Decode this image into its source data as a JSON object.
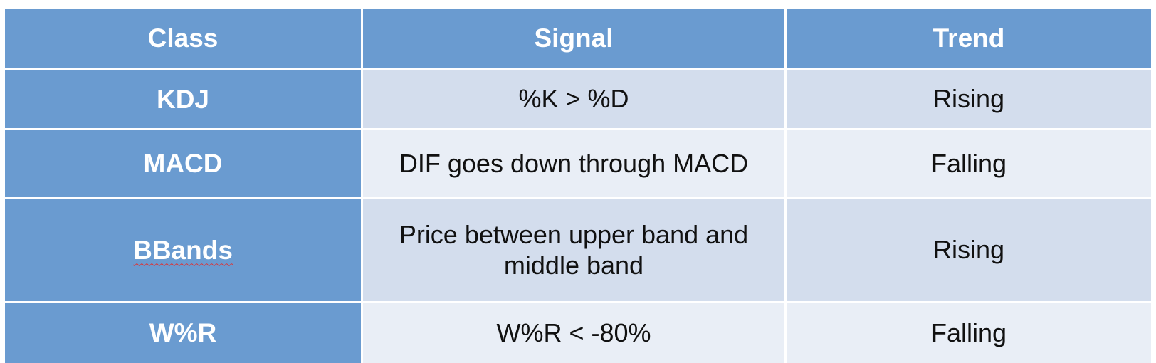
{
  "table": {
    "headers": [
      "Class",
      "Signal",
      "Trend"
    ],
    "rows": [
      {
        "class": "KDJ",
        "signal": "%K > %D",
        "trend": "Rising"
      },
      {
        "class": "MACD",
        "signal": "DIF goes down through MACD",
        "trend": "Falling"
      },
      {
        "class": "BBands",
        "signal": "Price between upper band and middle band",
        "trend": "Rising"
      },
      {
        "class": "W%R",
        "signal": "W%R < -80%",
        "trend": "Falling"
      }
    ]
  },
  "colors": {
    "header_bg": "#6a9bd0",
    "row_light": "#e9eef6",
    "row_mid": "#d3dded"
  }
}
